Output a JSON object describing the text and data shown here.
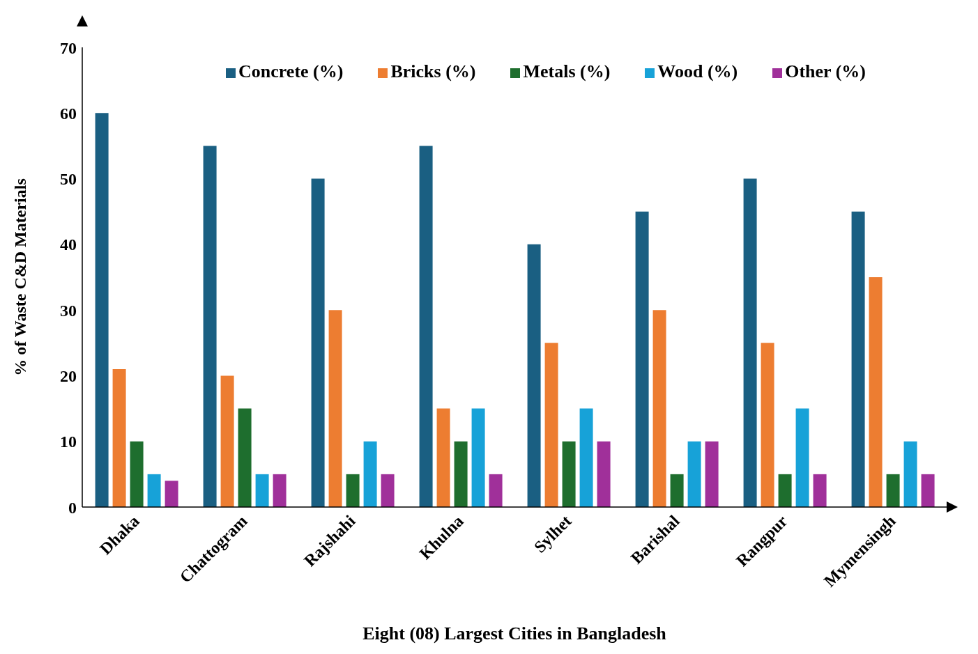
{
  "chart_data": {
    "type": "bar",
    "xlabel": "Eight (08) Largest Cities in Bangladesh",
    "ylabel": "% of Waste C&D Materials",
    "categories": [
      "Dhaka",
      "Chattogram",
      "Rajshahi",
      "Khulna",
      "Sylhet",
      "Barishal",
      "Rangpur",
      "Mymensingh"
    ],
    "series": [
      {
        "name": "Concrete (%)",
        "color": "#1a5f82",
        "values": [
          60,
          55,
          50,
          55,
          40,
          45,
          50,
          45
        ]
      },
      {
        "name": "Bricks (%)",
        "color": "#ed7d31",
        "values": [
          21,
          20,
          30,
          15,
          25,
          30,
          25,
          35
        ]
      },
      {
        "name": "Metals (%)",
        "color": "#1e6e2e",
        "values": [
          10,
          15,
          5,
          10,
          10,
          5,
          5,
          5
        ]
      },
      {
        "name": "Wood (%)",
        "color": "#17a2d8",
        "values": [
          5,
          5,
          10,
          15,
          15,
          10,
          15,
          10
        ]
      },
      {
        "name": "Other (%)",
        "color": "#a0309a",
        "values": [
          4,
          5,
          5,
          5,
          10,
          10,
          5,
          5
        ]
      }
    ],
    "ylim": [
      0,
      70
    ],
    "yticks": [
      0,
      10,
      20,
      30,
      40,
      50,
      60,
      70
    ],
    "grid": false,
    "legend": "top"
  }
}
